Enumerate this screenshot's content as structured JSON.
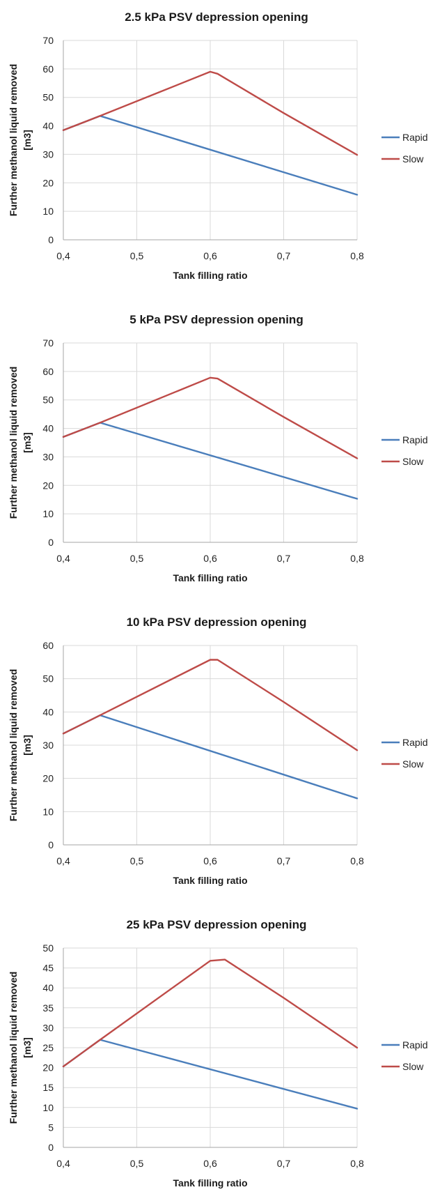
{
  "chart_data": [
    {
      "type": "line",
      "title": "2.5 kPa PSV depression opening",
      "xlabel": "Tank filling ratio",
      "ylabel": "Further methanol liquid removed [m3]",
      "xlim": [
        0.4,
        0.8
      ],
      "xticks": [
        "0,4",
        "0,5",
        "0,6",
        "0,7",
        "0,8"
      ],
      "ylim": [
        0,
        70
      ],
      "ystep": 10,
      "grid": true,
      "legend_position": "right",
      "series": [
        {
          "name": "Rapid",
          "color": "#4a7ebb",
          "x": [
            0.4,
            0.45,
            0.8
          ],
          "y": [
            38.5,
            43.5,
            15.8
          ]
        },
        {
          "name": "Slow",
          "color": "#be4b48",
          "x": [
            0.4,
            0.45,
            0.6,
            0.61,
            0.7,
            0.8
          ],
          "y": [
            38.5,
            43.5,
            59.0,
            58.3,
            44.5,
            29.8
          ]
        }
      ]
    },
    {
      "type": "line",
      "title": "5 kPa PSV depression opening",
      "xlabel": "Tank filling ratio",
      "ylabel": "Further methanol liquid removed [m3]",
      "xlim": [
        0.4,
        0.8
      ],
      "xticks": [
        "0,4",
        "0,5",
        "0,6",
        "0,7",
        "0,8"
      ],
      "ylim": [
        0,
        70
      ],
      "ystep": 10,
      "grid": true,
      "legend_position": "right",
      "series": [
        {
          "name": "Rapid",
          "color": "#4a7ebb",
          "x": [
            0.4,
            0.45,
            0.8
          ],
          "y": [
            37.0,
            42.0,
            15.3
          ]
        },
        {
          "name": "Slow",
          "color": "#be4b48",
          "x": [
            0.4,
            0.45,
            0.6,
            0.61,
            0.7,
            0.8
          ],
          "y": [
            37.0,
            42.0,
            57.8,
            57.5,
            44.0,
            29.5
          ]
        }
      ]
    },
    {
      "type": "line",
      "title": "10 kPa PSV depression opening",
      "xlabel": "Tank filling ratio",
      "ylabel": "Further methanol liquid removed [m3]",
      "xlim": [
        0.4,
        0.8
      ],
      "xticks": [
        "0,4",
        "0,5",
        "0,6",
        "0,7",
        "0,8"
      ],
      "ylim": [
        0,
        60
      ],
      "ystep": 10,
      "grid": true,
      "legend_position": "right",
      "series": [
        {
          "name": "Rapid",
          "color": "#4a7ebb",
          "x": [
            0.4,
            0.45,
            0.8
          ],
          "y": [
            33.5,
            39.0,
            14.0
          ]
        },
        {
          "name": "Slow",
          "color": "#be4b48",
          "x": [
            0.4,
            0.45,
            0.6,
            0.61,
            0.7,
            0.8
          ],
          "y": [
            33.5,
            39.0,
            55.7,
            55.7,
            43.0,
            28.5
          ]
        }
      ]
    },
    {
      "type": "line",
      "title": "25 kPa PSV depression opening",
      "xlabel": "Tank filling ratio",
      "ylabel": "Further methanol liquid removed [m3]",
      "xlim": [
        0.4,
        0.8
      ],
      "xticks": [
        "0,4",
        "0,5",
        "0,6",
        "0,7",
        "0,8"
      ],
      "ylim": [
        0,
        50
      ],
      "ystep": 5,
      "grid": true,
      "legend_position": "right",
      "series": [
        {
          "name": "Rapid",
          "color": "#4a7ebb",
          "x": [
            0.4,
            0.45,
            0.8
          ],
          "y": [
            20.3,
            27.0,
            9.7
          ]
        },
        {
          "name": "Slow",
          "color": "#be4b48",
          "x": [
            0.4,
            0.45,
            0.6,
            0.62,
            0.7,
            0.8
          ],
          "y": [
            20.3,
            27.0,
            46.8,
            47.1,
            37.5,
            25.0
          ]
        }
      ]
    }
  ]
}
